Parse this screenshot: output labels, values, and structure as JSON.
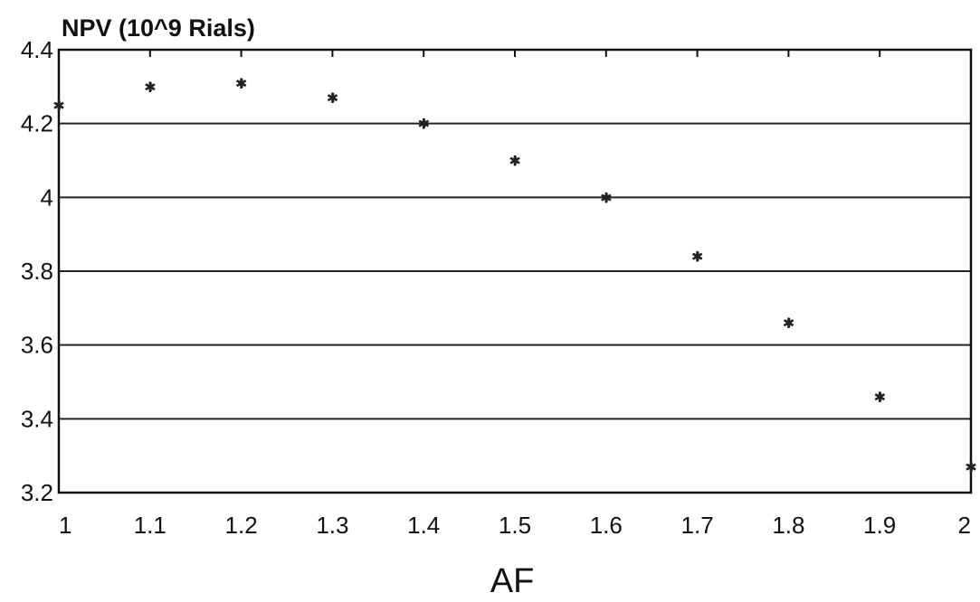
{
  "chart_data": {
    "type": "scatter",
    "ylabel": "NPV (10^9 Rials)",
    "xlabel": "AF",
    "x": [
      1.0,
      1.1,
      1.2,
      1.3,
      1.4,
      1.5,
      1.6,
      1.7,
      1.8,
      1.9,
      2.0
    ],
    "series": [
      {
        "values": [
          4.25,
          4.3,
          4.31,
          4.27,
          4.2,
          4.1,
          4.0,
          3.84,
          3.66,
          3.46,
          3.27
        ]
      }
    ],
    "xlim": [
      1,
      2
    ],
    "ylim": [
      3.2,
      4.4
    ],
    "x_ticks": [
      "1",
      "1.1",
      "1.2",
      "1.3",
      "1.4",
      "1.5",
      "1.6",
      "1.7",
      "1.8",
      "1.9",
      "2"
    ],
    "y_ticks": [
      "3.2",
      "3.4",
      "3.6",
      "3.8",
      "4",
      "4.2",
      "4.4"
    ],
    "grid": "horizontal",
    "legend": "none",
    "marker": "asterisk",
    "colors": {
      "ink": "#111111",
      "background": "#ffffff"
    }
  }
}
